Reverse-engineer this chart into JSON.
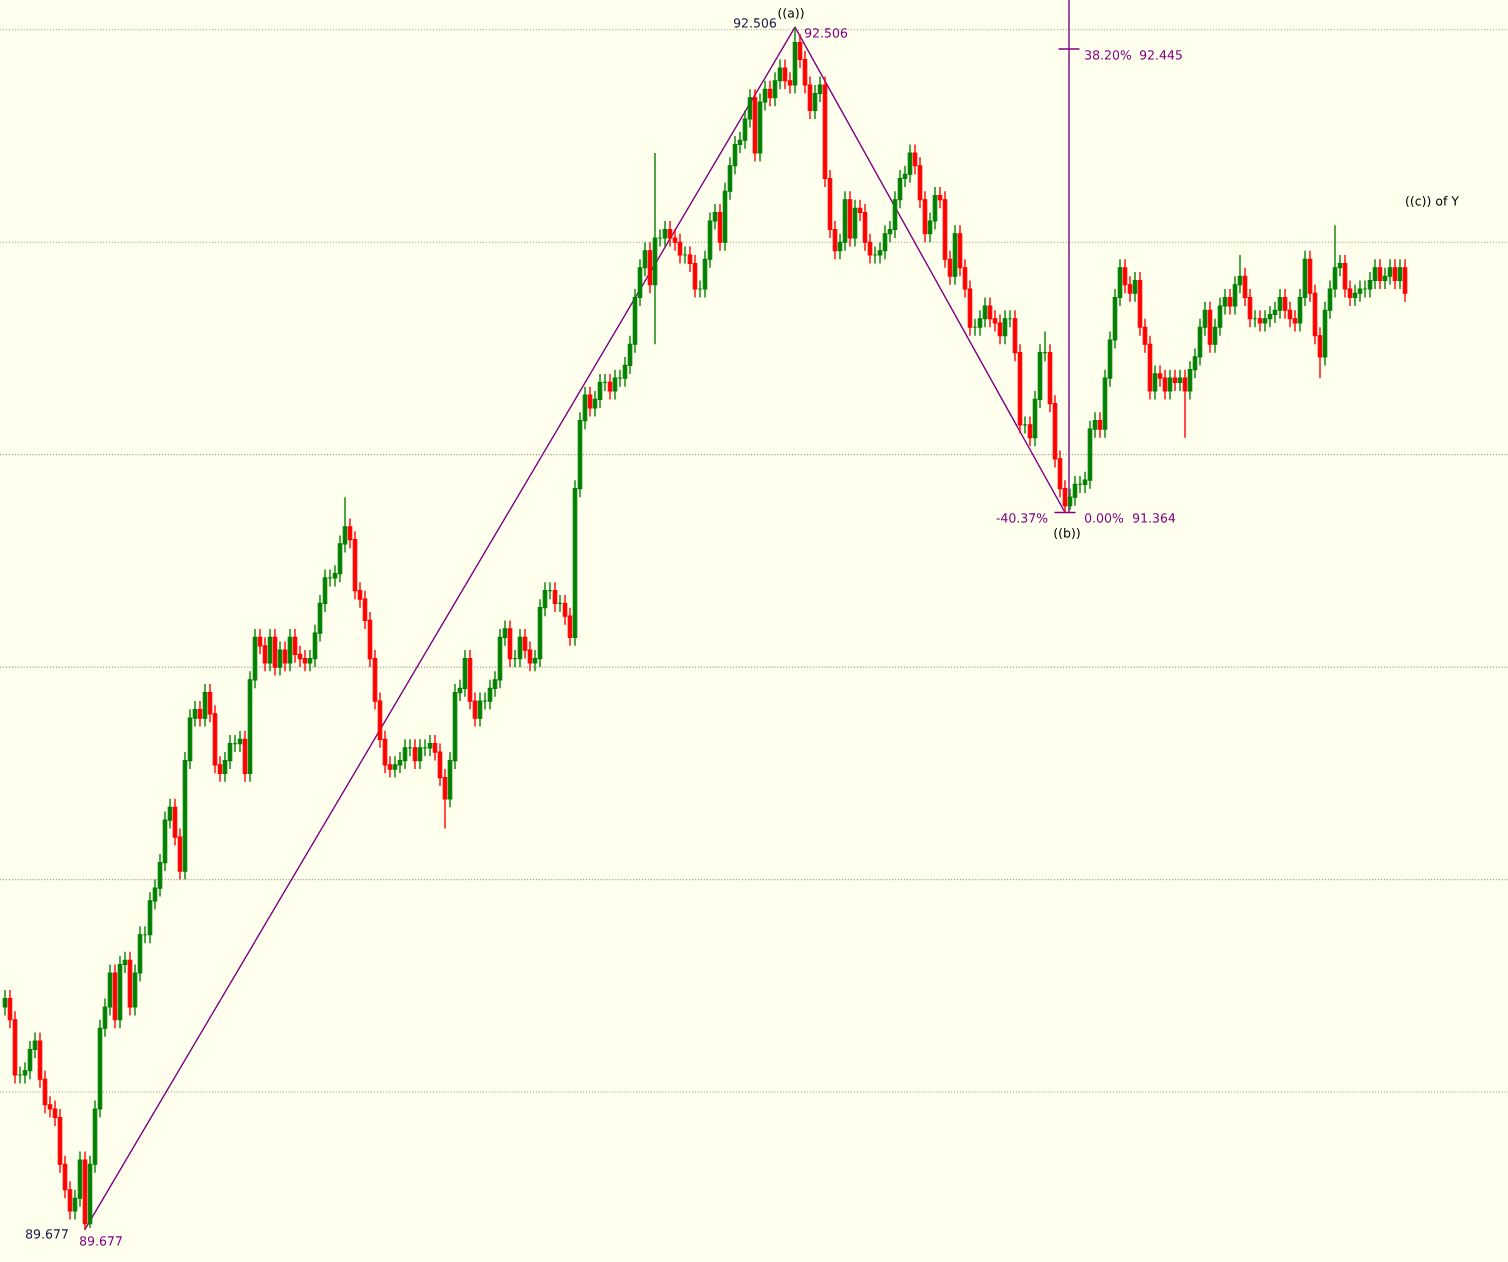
{
  "chart_data": {
    "type": "candlestick",
    "categories": [
      null,
      null,
      null,
      null,
      null,
      null,
      null,
      null,
      null,
      null,
      null,
      null,
      null,
      null,
      null,
      null,
      null,
      null,
      null,
      null,
      null,
      null,
      null,
      null,
      null,
      null,
      null,
      null,
      null,
      null,
      null,
      null,
      null,
      null,
      null,
      null,
      null,
      null,
      null,
      null,
      null,
      null,
      null,
      null,
      null,
      null,
      null,
      null,
      null,
      null,
      null,
      null,
      null,
      null,
      null,
      null,
      null,
      null,
      null,
      null,
      null,
      null,
      null,
      null,
      null,
      null,
      null,
      null,
      null,
      null,
      null,
      null,
      null,
      null,
      null,
      null,
      null,
      null,
      null,
      null,
      null,
      null,
      null,
      null,
      null,
      null,
      null,
      null,
      null,
      null,
      null,
      null,
      null,
      null,
      null,
      null,
      null,
      null,
      null,
      null,
      null,
      null,
      null,
      null,
      null,
      null,
      null,
      null,
      null,
      null,
      null,
      null,
      null,
      null,
      null,
      null,
      null,
      null,
      null,
      null,
      null,
      null,
      null,
      null,
      null,
      null,
      null,
      null,
      null,
      null,
      null,
      null,
      null,
      null,
      null,
      null,
      null,
      null,
      null,
      null,
      null,
      null,
      null,
      null,
      null,
      null,
      null,
      null,
      null,
      null,
      null,
      null,
      null,
      null,
      null,
      null,
      null,
      null,
      null,
      null,
      null,
      null,
      null,
      null,
      null,
      null,
      null,
      null,
      null,
      null,
      null,
      null,
      null,
      null,
      null,
      null,
      null,
      null,
      null,
      null,
      null,
      null,
      null,
      null,
      null,
      null,
      null,
      null,
      null,
      null,
      null,
      null,
      null,
      null,
      null,
      null,
      null,
      null,
      null,
      null,
      null,
      null,
      null,
      null,
      null,
      null,
      null,
      null,
      null,
      null,
      null,
      null,
      null,
      null,
      null,
      null,
      null,
      null,
      null,
      null,
      null,
      null,
      null,
      null,
      null,
      null,
      null,
      null,
      null,
      null,
      null,
      null,
      null,
      null,
      null,
      null,
      null,
      null,
      null,
      null,
      null,
      null,
      null,
      null,
      null,
      null,
      null,
      null,
      null,
      null,
      null,
      null,
      null,
      null,
      null,
      null,
      null,
      null,
      null,
      null,
      null,
      null,
      null,
      null,
      null,
      null,
      null,
      null,
      null,
      null,
      null,
      null,
      null,
      null,
      null,
      null,
      null,
      null,
      null,
      null,
      null
    ],
    "ohlc": [
      [
        90.2,
        90.24,
        90.18,
        90.22
      ],
      [
        90.22,
        90.24,
        90.15,
        90.17
      ],
      [
        90.17,
        90.19,
        90.02,
        90.04
      ],
      [
        90.04,
        90.06,
        90.02,
        90.04
      ],
      [
        90.04,
        90.07,
        90.02,
        90.05
      ],
      [
        90.05,
        90.12,
        90.03,
        90.1
      ],
      [
        90.1,
        90.14,
        90.08,
        90.12
      ],
      [
        90.12,
        90.14,
        90.01,
        90.03
      ],
      [
        90.03,
        90.05,
        89.95,
        89.97
      ],
      [
        89.97,
        89.99,
        89.94,
        89.96
      ],
      [
        89.96,
        89.98,
        89.92,
        89.94
      ],
      [
        89.94,
        89.96,
        89.81,
        89.83
      ],
      [
        89.83,
        89.85,
        89.75,
        89.77
      ],
      [
        89.77,
        89.79,
        89.7,
        89.72
      ],
      [
        89.72,
        89.77,
        89.7,
        89.75
      ],
      [
        89.75,
        89.86,
        89.73,
        89.84
      ],
      [
        89.84,
        89.86,
        89.677,
        89.69
      ],
      [
        89.69,
        89.85,
        89.68,
        89.83
      ],
      [
        89.83,
        89.98,
        89.81,
        89.96
      ],
      [
        89.96,
        90.17,
        89.94,
        90.15
      ],
      [
        90.15,
        90.22,
        90.13,
        90.2
      ],
      [
        90.2,
        90.3,
        90.18,
        90.28
      ],
      [
        90.28,
        90.3,
        90.15,
        90.17
      ],
      [
        90.17,
        90.32,
        90.15,
        90.3
      ],
      [
        90.3,
        90.33,
        90.28,
        90.31
      ],
      [
        90.31,
        90.33,
        90.18,
        90.2
      ],
      [
        90.2,
        90.3,
        90.18,
        90.28
      ],
      [
        90.28,
        90.39,
        90.26,
        90.37
      ],
      [
        90.37,
        90.39,
        90.35,
        90.37
      ],
      [
        90.37,
        90.47,
        90.35,
        90.45
      ],
      [
        90.45,
        90.5,
        90.43,
        90.48
      ],
      [
        90.48,
        90.56,
        90.46,
        90.54
      ],
      [
        90.54,
        90.66,
        90.52,
        90.64
      ],
      [
        90.64,
        90.69,
        90.62,
        90.67
      ],
      [
        90.67,
        90.69,
        90.58,
        90.6
      ],
      [
        90.6,
        90.62,
        90.5,
        90.52
      ],
      [
        90.52,
        90.8,
        90.5,
        90.78
      ],
      [
        90.78,
        90.9,
        90.76,
        90.88
      ],
      [
        90.88,
        90.92,
        90.86,
        90.9
      ],
      [
        90.9,
        90.92,
        90.86,
        90.88
      ],
      [
        90.88,
        90.96,
        90.86,
        90.94
      ],
      [
        90.94,
        90.96,
        90.87,
        90.89
      ],
      [
        90.89,
        90.91,
        90.75,
        90.77
      ],
      [
        90.77,
        90.79,
        90.73,
        90.75
      ],
      [
        90.75,
        90.8,
        90.73,
        90.78
      ],
      [
        90.78,
        90.84,
        90.76,
        90.82
      ],
      [
        90.82,
        90.84,
        90.8,
        90.82
      ],
      [
        90.82,
        90.85,
        90.8,
        90.83
      ],
      [
        90.83,
        90.85,
        90.73,
        90.75
      ],
      [
        90.75,
        90.99,
        90.73,
        90.97
      ],
      [
        90.97,
        91.09,
        90.95,
        91.07
      ],
      [
        91.07,
        91.09,
        91.03,
        91.05
      ],
      [
        91.05,
        91.07,
        90.99,
        91.01
      ],
      [
        91.01,
        91.09,
        90.99,
        91.07
      ],
      [
        91.07,
        91.09,
        90.98,
        91.0
      ],
      [
        91.0,
        91.06,
        90.98,
        91.04
      ],
      [
        91.04,
        91.06,
        90.99,
        91.01
      ],
      [
        91.01,
        91.09,
        90.99,
        91.07
      ],
      [
        91.07,
        91.09,
        91.01,
        91.03
      ],
      [
        91.03,
        91.05,
        91.0,
        91.02
      ],
      [
        91.02,
        91.04,
        90.99,
        91.01
      ],
      [
        91.01,
        91.04,
        90.99,
        91.02
      ],
      [
        91.02,
        91.1,
        91.0,
        91.08
      ],
      [
        91.08,
        91.17,
        91.06,
        91.15
      ],
      [
        91.15,
        91.23,
        91.13,
        91.21
      ],
      [
        91.21,
        91.23,
        91.19,
        91.21
      ],
      [
        91.21,
        91.24,
        91.19,
        91.22
      ],
      [
        91.22,
        91.31,
        91.2,
        91.29
      ],
      [
        91.29,
        91.4,
        91.27,
        91.33
      ],
      [
        91.33,
        91.35,
        91.28,
        91.3
      ],
      [
        91.3,
        91.32,
        91.16,
        91.18
      ],
      [
        91.18,
        91.2,
        91.14,
        91.16
      ],
      [
        91.16,
        91.18,
        91.09,
        91.11
      ],
      [
        91.11,
        91.13,
        91.0,
        91.02
      ],
      [
        91.02,
        91.04,
        90.9,
        90.92
      ],
      [
        90.92,
        90.94,
        90.81,
        90.83
      ],
      [
        90.83,
        90.85,
        90.75,
        90.77
      ],
      [
        90.77,
        90.79,
        90.74,
        90.76
      ],
      [
        90.76,
        90.79,
        90.74,
        90.77
      ],
      [
        90.77,
        90.8,
        90.75,
        90.78
      ],
      [
        90.78,
        90.83,
        90.76,
        90.81
      ],
      [
        90.81,
        90.83,
        90.79,
        90.81
      ],
      [
        90.81,
        90.83,
        90.76,
        90.78
      ],
      [
        90.78,
        90.83,
        90.76,
        90.81
      ],
      [
        90.81,
        90.83,
        90.79,
        90.81
      ],
      [
        90.81,
        90.84,
        90.79,
        90.82
      ],
      [
        90.82,
        90.84,
        90.78,
        90.8
      ],
      [
        90.8,
        90.82,
        90.72,
        90.74
      ],
      [
        90.74,
        90.76,
        90.62,
        90.69
      ],
      [
        90.69,
        90.8,
        90.67,
        90.78
      ],
      [
        90.78,
        90.96,
        90.76,
        90.94
      ],
      [
        90.94,
        90.97,
        90.92,
        90.95
      ],
      [
        90.95,
        91.04,
        90.93,
        91.02
      ],
      [
        91.02,
        91.04,
        90.9,
        90.92
      ],
      [
        90.92,
        90.94,
        90.86,
        90.88
      ],
      [
        90.88,
        90.94,
        90.86,
        90.92
      ],
      [
        90.92,
        90.94,
        90.9,
        90.92
      ],
      [
        90.92,
        90.97,
        90.9,
        90.95
      ],
      [
        90.95,
        90.99,
        90.93,
        90.97
      ],
      [
        90.97,
        91.09,
        90.95,
        91.07
      ],
      [
        91.07,
        91.11,
        91.05,
        91.09
      ],
      [
        91.09,
        91.11,
        91.0,
        91.02
      ],
      [
        91.02,
        91.04,
        91.0,
        91.02
      ],
      [
        91.02,
        91.09,
        91.0,
        91.07
      ],
      [
        91.07,
        91.09,
        91.02,
        91.04
      ],
      [
        91.04,
        91.06,
        90.99,
        91.01
      ],
      [
        91.01,
        91.04,
        90.99,
        91.02
      ],
      [
        91.02,
        91.16,
        91.0,
        91.14
      ],
      [
        91.14,
        91.2,
        91.12,
        91.18
      ],
      [
        91.18,
        91.2,
        91.16,
        91.18
      ],
      [
        91.18,
        91.2,
        91.13,
        91.15
      ],
      [
        91.15,
        91.17,
        91.13,
        91.15
      ],
      [
        91.15,
        91.17,
        91.1,
        91.12
      ],
      [
        91.12,
        91.14,
        91.05,
        91.07
      ],
      [
        91.07,
        91.44,
        91.05,
        91.42
      ],
      [
        91.42,
        91.6,
        91.4,
        91.58
      ],
      [
        91.58,
        91.66,
        91.56,
        91.64
      ],
      [
        91.64,
        91.66,
        91.59,
        91.61
      ],
      [
        91.61,
        91.65,
        91.59,
        91.63
      ],
      [
        91.63,
        91.69,
        91.61,
        91.67
      ],
      [
        91.67,
        91.69,
        91.65,
        91.67
      ],
      [
        91.67,
        91.69,
        91.63,
        91.65
      ],
      [
        91.65,
        91.7,
        91.63,
        91.68
      ],
      [
        91.68,
        91.7,
        91.66,
        91.68
      ],
      [
        91.68,
        91.73,
        91.66,
        91.71
      ],
      [
        91.71,
        91.78,
        91.69,
        91.76
      ],
      [
        91.76,
        91.89,
        91.74,
        91.87
      ],
      [
        91.87,
        91.96,
        91.85,
        91.94
      ],
      [
        91.94,
        92.0,
        91.92,
        91.98
      ],
      [
        91.98,
        92.0,
        91.88,
        91.9
      ],
      [
        91.9,
        92.21,
        91.76,
        92.01
      ],
      [
        92.01,
        92.03,
        91.99,
        92.01
      ],
      [
        92.01,
        92.05,
        91.99,
        92.03
      ],
      [
        92.03,
        92.05,
        91.99,
        92.01
      ],
      [
        92.01,
        92.03,
        91.98,
        92.0
      ],
      [
        92.0,
        92.02,
        91.95,
        91.97
      ],
      [
        91.97,
        91.99,
        91.95,
        91.97
      ],
      [
        91.97,
        91.99,
        91.93,
        91.95
      ],
      [
        91.95,
        91.97,
        91.87,
        91.89
      ],
      [
        91.89,
        91.91,
        91.87,
        91.89
      ],
      [
        91.89,
        91.98,
        91.87,
        91.96
      ],
      [
        91.96,
        92.07,
        91.94,
        92.05
      ],
      [
        92.05,
        92.09,
        92.03,
        92.07
      ],
      [
        92.07,
        92.09,
        91.98,
        92.0
      ],
      [
        92.0,
        92.14,
        91.98,
        92.12
      ],
      [
        92.12,
        92.2,
        92.1,
        92.18
      ],
      [
        92.18,
        92.25,
        92.16,
        92.23
      ],
      [
        92.23,
        92.26,
        92.21,
        92.24
      ],
      [
        92.24,
        92.31,
        92.22,
        92.29
      ],
      [
        92.29,
        92.36,
        92.27,
        92.34
      ],
      [
        92.34,
        92.36,
        92.19,
        92.21
      ],
      [
        92.21,
        92.35,
        92.19,
        92.33
      ],
      [
        92.33,
        92.38,
        92.31,
        92.36
      ],
      [
        92.36,
        92.38,
        92.32,
        92.34
      ],
      [
        92.34,
        92.4,
        92.32,
        92.38
      ],
      [
        92.38,
        92.43,
        92.36,
        92.41
      ],
      [
        92.41,
        92.43,
        92.36,
        92.38
      ],
      [
        92.38,
        92.4,
        92.35,
        92.37
      ],
      [
        92.37,
        92.506,
        92.35,
        92.47
      ],
      [
        92.47,
        92.49,
        92.41,
        92.43
      ],
      [
        92.43,
        92.45,
        92.35,
        92.37
      ],
      [
        92.37,
        92.39,
        92.29,
        92.31
      ],
      [
        92.31,
        92.37,
        92.29,
        92.35
      ],
      [
        92.35,
        92.39,
        92.33,
        92.37
      ],
      [
        92.37,
        92.39,
        92.13,
        92.15
      ],
      [
        92.15,
        92.17,
        92.01,
        92.03
      ],
      [
        92.03,
        92.05,
        91.96,
        91.98
      ],
      [
        91.98,
        92.02,
        91.96,
        92.0
      ],
      [
        92.0,
        92.12,
        91.98,
        92.1
      ],
      [
        92.1,
        92.12,
        91.99,
        92.01
      ],
      [
        92.01,
        92.1,
        91.99,
        92.08
      ],
      [
        92.08,
        92.1,
        92.05,
        92.07
      ],
      [
        92.07,
        92.09,
        91.98,
        92.0
      ],
      [
        92.0,
        92.02,
        91.95,
        91.97
      ],
      [
        91.97,
        91.99,
        91.95,
        91.97
      ],
      [
        91.97,
        92.0,
        91.95,
        91.98
      ],
      [
        91.98,
        92.04,
        91.96,
        92.02
      ],
      [
        92.02,
        92.05,
        92.0,
        92.03
      ],
      [
        92.03,
        92.12,
        92.01,
        92.1
      ],
      [
        92.1,
        92.17,
        92.08,
        92.15
      ],
      [
        92.15,
        92.18,
        92.13,
        92.16
      ],
      [
        92.16,
        92.23,
        92.14,
        92.21
      ],
      [
        92.21,
        92.23,
        92.16,
        92.18
      ],
      [
        92.18,
        92.2,
        92.08,
        92.1
      ],
      [
        92.1,
        92.12,
        92.0,
        92.02
      ],
      [
        92.02,
        92.07,
        92.0,
        92.05
      ],
      [
        92.05,
        92.13,
        92.03,
        92.11
      ],
      [
        92.11,
        92.13,
        92.08,
        92.1
      ],
      [
        92.1,
        92.12,
        91.94,
        91.96
      ],
      [
        91.96,
        91.98,
        91.9,
        91.92
      ],
      [
        91.92,
        92.04,
        91.9,
        92.02
      ],
      [
        92.02,
        92.04,
        91.92,
        91.94
      ],
      [
        91.94,
        91.96,
        91.87,
        91.89
      ],
      [
        91.89,
        91.91,
        91.78,
        91.8
      ],
      [
        91.8,
        91.82,
        91.78,
        91.8
      ],
      [
        91.8,
        91.84,
        91.78,
        91.82
      ],
      [
        91.82,
        91.87,
        91.8,
        91.85
      ],
      [
        91.85,
        91.87,
        91.8,
        91.82
      ],
      [
        91.82,
        91.84,
        91.79,
        91.81
      ],
      [
        91.81,
        91.83,
        91.76,
        91.78
      ],
      [
        91.78,
        91.84,
        91.76,
        91.82
      ],
      [
        91.82,
        91.84,
        91.8,
        91.82
      ],
      [
        91.82,
        91.84,
        91.72,
        91.74
      ],
      [
        91.74,
        91.76,
        91.55,
        91.57
      ],
      [
        91.57,
        91.59,
        91.55,
        91.57
      ],
      [
        91.57,
        91.59,
        91.52,
        91.54
      ],
      [
        91.54,
        91.65,
        91.52,
        91.63
      ],
      [
        91.63,
        91.76,
        91.61,
        91.74
      ],
      [
        91.74,
        91.79,
        91.72,
        91.74
      ],
      [
        91.74,
        91.76,
        91.6,
        91.62
      ],
      [
        91.62,
        91.64,
        91.47,
        91.49
      ],
      [
        91.49,
        91.51,
        91.4,
        91.42
      ],
      [
        91.42,
        91.44,
        91.364,
        91.38
      ],
      [
        91.38,
        91.42,
        91.37,
        91.4
      ],
      [
        91.4,
        91.45,
        91.38,
        91.43
      ],
      [
        91.43,
        91.45,
        91.41,
        91.43
      ],
      [
        91.43,
        91.46,
        91.41,
        91.44
      ],
      [
        91.44,
        91.58,
        91.42,
        91.56
      ],
      [
        91.56,
        91.6,
        91.54,
        91.58
      ],
      [
        91.58,
        91.6,
        91.54,
        91.56
      ],
      [
        91.56,
        91.7,
        91.54,
        91.68
      ],
      [
        91.68,
        91.79,
        91.66,
        91.77
      ],
      [
        91.77,
        91.89,
        91.75,
        91.87
      ],
      [
        91.87,
        91.96,
        91.85,
        91.94
      ],
      [
        91.94,
        91.96,
        91.88,
        91.9
      ],
      [
        91.9,
        91.92,
        91.86,
        91.88
      ],
      [
        91.88,
        91.93,
        91.86,
        91.91
      ],
      [
        91.91,
        91.93,
        91.78,
        91.8
      ],
      [
        91.8,
        91.82,
        91.74,
        91.76
      ],
      [
        91.76,
        91.78,
        91.63,
        91.65
      ],
      [
        91.65,
        91.71,
        91.63,
        91.69
      ],
      [
        91.69,
        91.71,
        91.66,
        91.68
      ],
      [
        91.68,
        91.7,
        91.63,
        91.65
      ],
      [
        91.65,
        91.7,
        91.63,
        91.68
      ],
      [
        91.68,
        91.7,
        91.65,
        91.67
      ],
      [
        91.67,
        91.7,
        91.65,
        91.68
      ],
      [
        91.68,
        91.7,
        91.54,
        91.65
      ],
      [
        91.65,
        91.72,
        91.63,
        91.7
      ],
      [
        91.7,
        91.75,
        91.68,
        91.73
      ],
      [
        91.73,
        91.82,
        91.71,
        91.8
      ],
      [
        91.8,
        91.86,
        91.78,
        91.84
      ],
      [
        91.84,
        91.86,
        91.74,
        91.76
      ],
      [
        91.76,
        91.82,
        91.74,
        91.8
      ],
      [
        91.8,
        91.87,
        91.78,
        91.85
      ],
      [
        91.85,
        91.89,
        91.83,
        91.87
      ],
      [
        91.87,
        91.89,
        91.83,
        91.85
      ],
      [
        91.85,
        91.92,
        91.83,
        91.9
      ],
      [
        91.9,
        91.97,
        91.88,
        91.92
      ],
      [
        91.92,
        91.94,
        91.85,
        91.87
      ],
      [
        91.87,
        91.89,
        91.8,
        91.82
      ],
      [
        91.82,
        91.84,
        91.8,
        91.82
      ],
      [
        91.82,
        91.84,
        91.79,
        91.81
      ],
      [
        91.81,
        91.84,
        91.79,
        91.82
      ],
      [
        91.82,
        91.85,
        91.8,
        91.83
      ],
      [
        91.83,
        91.86,
        91.81,
        91.84
      ],
      [
        91.84,
        91.89,
        91.82,
        91.87
      ],
      [
        91.87,
        91.89,
        91.82,
        91.84
      ],
      [
        91.84,
        91.86,
        91.8,
        91.82
      ],
      [
        91.82,
        91.84,
        91.79,
        91.81
      ],
      [
        91.81,
        91.89,
        91.79,
        91.87
      ],
      [
        91.87,
        91.98,
        91.85,
        91.96
      ],
      [
        91.96,
        91.98,
        91.86,
        91.88
      ],
      [
        91.88,
        91.9,
        91.76,
        91.78
      ],
      [
        91.78,
        91.8,
        91.68,
        91.73
      ],
      [
        91.73,
        91.86,
        91.71,
        91.84
      ],
      [
        91.84,
        91.91,
        91.82,
        91.89
      ],
      [
        91.89,
        92.04,
        91.87,
        91.94
      ],
      [
        91.94,
        91.97,
        91.92,
        91.95
      ],
      [
        91.95,
        91.97,
        91.87,
        91.89
      ],
      [
        91.89,
        91.91,
        91.85,
        91.87
      ],
      [
        91.87,
        91.9,
        91.85,
        91.88
      ],
      [
        91.88,
        91.91,
        91.86,
        91.89
      ],
      [
        91.89,
        91.91,
        91.87,
        91.89
      ],
      [
        91.89,
        91.93,
        91.87,
        91.91
      ],
      [
        91.91,
        91.96,
        91.89,
        91.94
      ],
      [
        91.94,
        91.96,
        91.89,
        91.91
      ],
      [
        91.91,
        91.94,
        91.89,
        91.92
      ],
      [
        91.92,
        91.96,
        91.9,
        91.94
      ],
      [
        91.94,
        91.96,
        91.89,
        91.91
      ],
      [
        91.91,
        91.96,
        91.89,
        91.94
      ],
      [
        91.94,
        91.96,
        91.86,
        91.88
      ]
    ],
    "series": [
      {
        "type": "line",
        "color": "#800080",
        "values": [
          null,
          null,
          null,
          null,
          null,
          null,
          null,
          null,
          null,
          null,
          null,
          null,
          null,
          null,
          null,
          null,
          89.677,
          null,
          null,
          null,
          null,
          null,
          null,
          null,
          null,
          null,
          null,
          null,
          null,
          null,
          null,
          null,
          null,
          null,
          null,
          null,
          null,
          null,
          null,
          null,
          null,
          null,
          null,
          null,
          null,
          null,
          null,
          null,
          null,
          null,
          null,
          null,
          null,
          null,
          null,
          null,
          null,
          null,
          null,
          null,
          null,
          null,
          null,
          null,
          null,
          null,
          null,
          null,
          null,
          null,
          null,
          null,
          null,
          null,
          null,
          null,
          null,
          null,
          null,
          null,
          null,
          null,
          null,
          null,
          null,
          null,
          null,
          null,
          null,
          null,
          null,
          null,
          null,
          null,
          null,
          null,
          null,
          null,
          null,
          null,
          null,
          null,
          null,
          null,
          null,
          null,
          null,
          null,
          null,
          null,
          null,
          null,
          null,
          null,
          null,
          null,
          null,
          null,
          null,
          null,
          null,
          null,
          null,
          null,
          null,
          null,
          null,
          null,
          null,
          null,
          null,
          null,
          null,
          null,
          null,
          null,
          null,
          null,
          null,
          null,
          null,
          null,
          null,
          null,
          null,
          null,
          null,
          null,
          null,
          null,
          null,
          null,
          null,
          null,
          null,
          null,
          null,
          null,
          92.506,
          null,
          null,
          null,
          null,
          null,
          null,
          null,
          null,
          null,
          null,
          null,
          null,
          null,
          null,
          null,
          null,
          null,
          null,
          null,
          null,
          null,
          null,
          null,
          null,
          null,
          null,
          null,
          null,
          null,
          null,
          null,
          null,
          null,
          null,
          null,
          null,
          null,
          null,
          null,
          null,
          null,
          null,
          null,
          null,
          null,
          null,
          null,
          null,
          null,
          null,
          null,
          null,
          null,
          91.364,
          null,
          null,
          null,
          null,
          null,
          null,
          null,
          null,
          null,
          null,
          null,
          null,
          null,
          null,
          null,
          null,
          null,
          null,
          null,
          null,
          null,
          null,
          null,
          null,
          null,
          null,
          null,
          null,
          null,
          null,
          null,
          null,
          null,
          null,
          null,
          null,
          null,
          null,
          null,
          null,
          null,
          null,
          null,
          null,
          null,
          null,
          null,
          null,
          null,
          null,
          null,
          null,
          null,
          null,
          null,
          null,
          null,
          null,
          null,
          null,
          null,
          null,
          null,
          null,
          null,
          null,
          null,
          null
        ]
      }
    ],
    "ylim": [
      89.6,
      92.57
    ],
    "yticks": [
      {
        "value": 90.0,
        "label": null
      },
      {
        "value": 90.5,
        "label": null
      },
      {
        "value": 91.0,
        "label": null
      },
      {
        "value": 91.5,
        "label": null
      },
      {
        "value": 92.0,
        "label": null
      },
      {
        "value": 92.5,
        "label": null
      }
    ],
    "grid": "y",
    "annotations": [
      "92.506",
      "((a))",
      "92.506",
      "38.20%",
      "92.445",
      "-40.37%",
      "0.00%",
      "91.364",
      "((b))",
      "((c)) of Y",
      "89.677",
      "89.677"
    ]
  }
}
